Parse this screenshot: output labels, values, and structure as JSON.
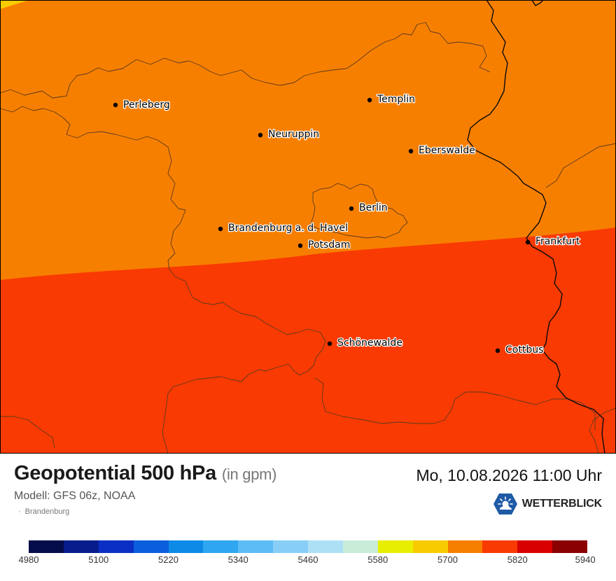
{
  "map": {
    "cities": [
      {
        "name": "Perleberg"
      },
      {
        "name": "Templin"
      },
      {
        "name": "Neuruppin"
      },
      {
        "name": "Eberswalde"
      },
      {
        "name": "Berlin"
      },
      {
        "name": "Brandenburg a. d. Havel"
      },
      {
        "name": "Potsdam"
      },
      {
        "name": "Frankfurt"
      },
      {
        "name": "Schönewalde"
      },
      {
        "name": "Cottbus"
      }
    ],
    "field_colors": {
      "5700_5760": "#f77f00",
      "5760_5820": "#f93a02",
      "5640_5700": "#f8cb00"
    }
  },
  "footer": {
    "title": "Geopotential 500 hPa",
    "unit": "(in gpm)",
    "model": "Modell: GFS 06z, NOAA",
    "region": "Brandenburg",
    "datetime": "Mo, 10.08.2026 11:00 Uhr",
    "brand": "WETTERBLICK",
    "brand_icon": "sun-cloud-icon"
  },
  "legend": {
    "colors": [
      "#050d4a",
      "#081c8c",
      "#0b2fc4",
      "#0a5fdc",
      "#0c8ae6",
      "#2ea6f0",
      "#5cbcf5",
      "#88cef7",
      "#aee0f5",
      "#c8ecd8",
      "#e8ee00",
      "#f8cb00",
      "#f77f00",
      "#f93a02",
      "#d80000",
      "#8b0000"
    ],
    "labels": [
      "4980",
      "5100",
      "5220",
      "5340",
      "5460",
      "5580",
      "5700",
      "5820",
      "5940"
    ]
  }
}
